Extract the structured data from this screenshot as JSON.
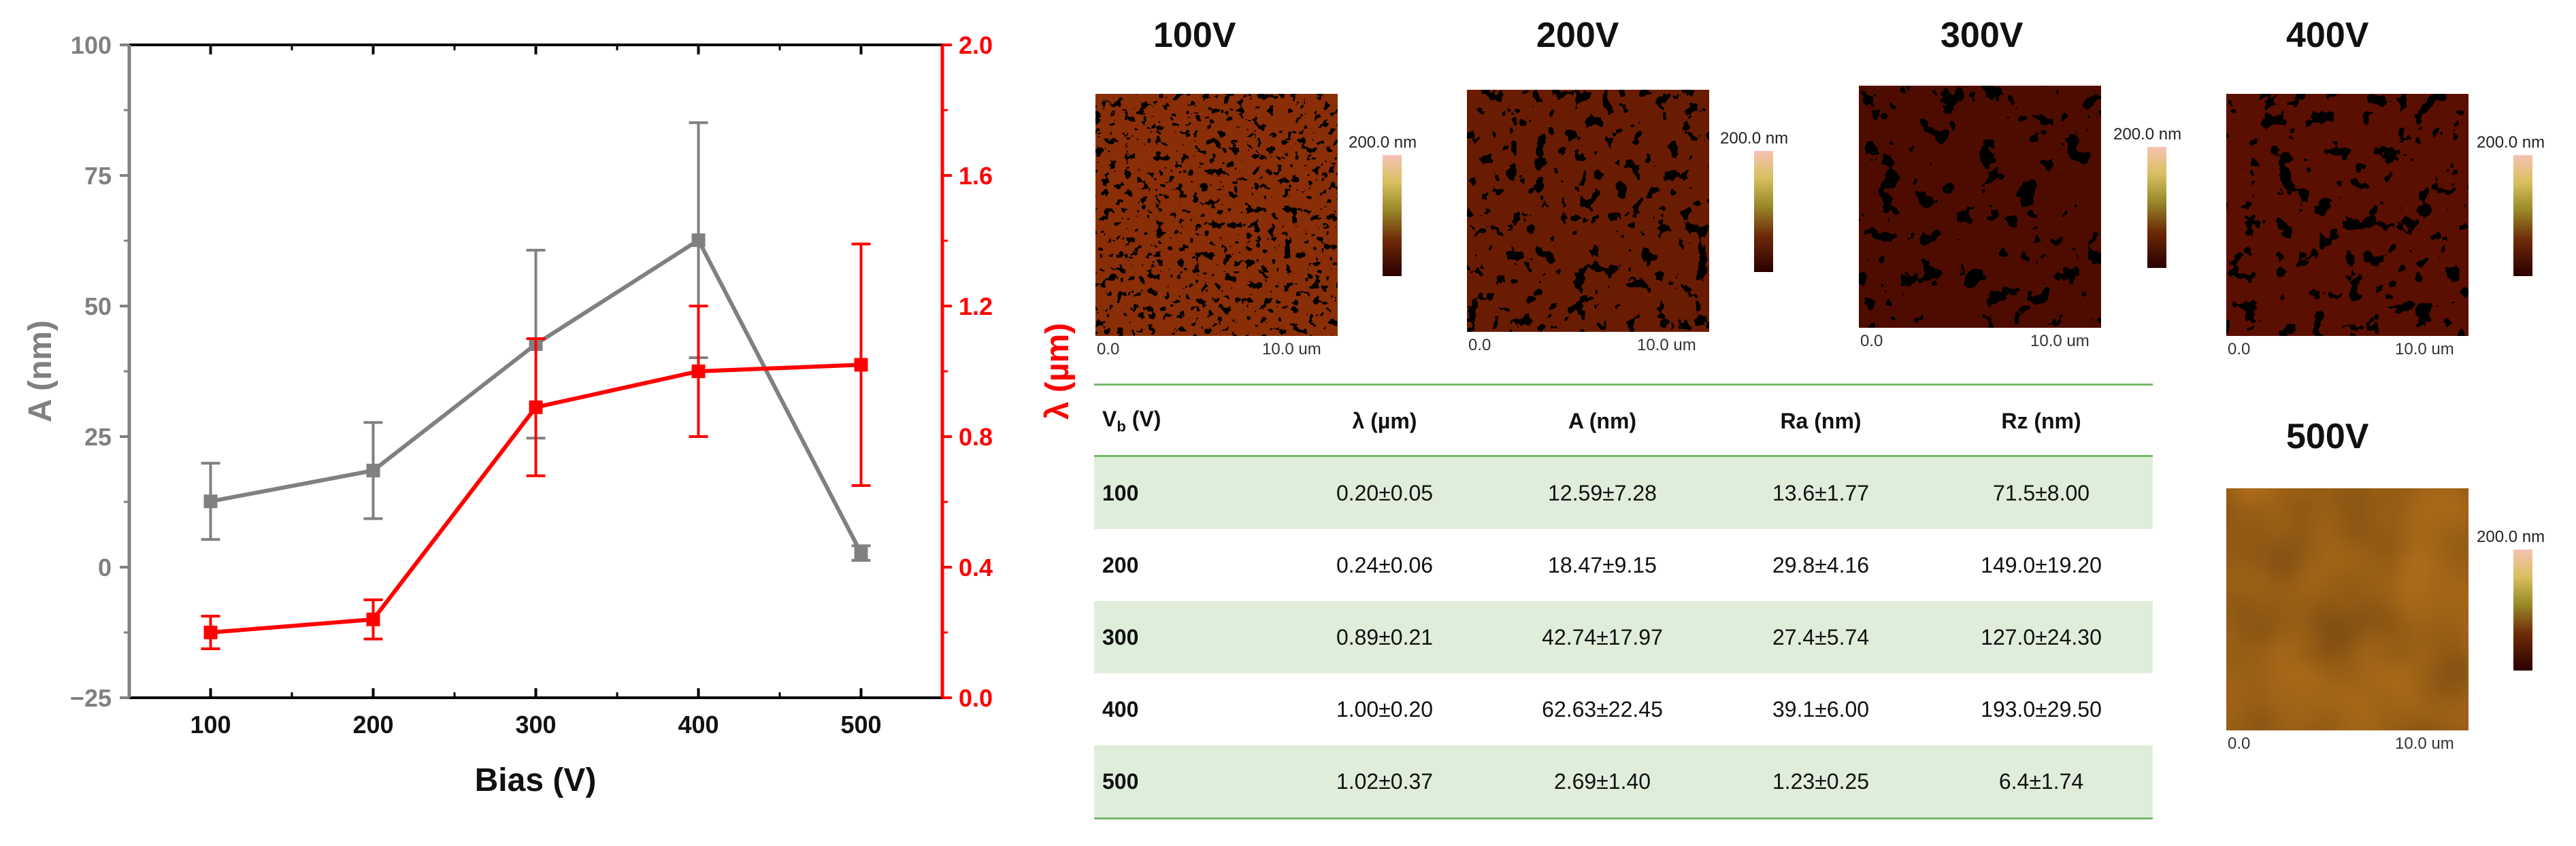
{
  "chart_data": {
    "type": "line",
    "xlabel": "Bias (V)",
    "ylabel_left": "A (nm)",
    "ylabel_right": "λ (µm)",
    "categories": [
      100,
      200,
      300,
      400,
      500
    ],
    "xlim": [
      50,
      550
    ],
    "ylim_left": [
      -25,
      100
    ],
    "ylim_right": [
      0.0,
      2.0
    ],
    "yticks_left": [
      "−25",
      "0",
      "25",
      "50",
      "75",
      "100"
    ],
    "yticks_right": [
      "0.0",
      "0.4",
      "0.8",
      "1.2",
      "1.6",
      "2.0"
    ],
    "xticks": [
      "100",
      "200",
      "300",
      "400",
      "500"
    ],
    "series": [
      {
        "name": "A (nm)",
        "axis": "left",
        "color": "#808080",
        "values": [
          12.6,
          18.5,
          42.7,
          62.6,
          2.7
        ],
        "errors": [
          7.3,
          9.2,
          18.0,
          22.5,
          1.4
        ]
      },
      {
        "name": "λ (µm)",
        "axis": "right",
        "color": "#ff0000",
        "values": [
          0.2,
          0.24,
          0.89,
          1.0,
          1.02
        ],
        "errors": [
          0.05,
          0.06,
          0.21,
          0.2,
          0.37
        ]
      }
    ]
  },
  "afm_images": [
    {
      "title": "100V",
      "scale_max": "200.0 nm",
      "x_min": "0.0",
      "x_max": "10.0 um"
    },
    {
      "title": "200V",
      "scale_max": "200.0 nm",
      "x_min": "0.0",
      "x_max": "10.0 um"
    },
    {
      "title": "300V",
      "scale_max": "200.0 nm",
      "x_min": "0.0",
      "x_max": "10.0 um"
    },
    {
      "title": "400V",
      "scale_max": "200.0 nm",
      "x_min": "0.0",
      "x_max": "10.0 um"
    },
    {
      "title": "500V",
      "scale_max": "200.0 nm",
      "x_min": "0.0",
      "x_max": "10.0 um"
    }
  ],
  "table": {
    "headers": {
      "vb_main": "V",
      "vb_sub": "b",
      "vb_unit": " (V)",
      "lambda": "λ (µm)",
      "a": "A (nm)",
      "ra": "Ra (nm)",
      "rz": "Rz (nm)"
    },
    "rows": [
      [
        "100",
        "0.20±0.05",
        "12.59±7.28",
        "13.6±1.77",
        "71.5±8.00"
      ],
      [
        "200",
        "0.24±0.06",
        "18.47±9.15",
        "29.8±4.16",
        "149.0±19.20"
      ],
      [
        "300",
        "0.89±0.21",
        "42.74±17.97",
        "27.4±5.74",
        "127.0±24.30"
      ],
      [
        "400",
        "1.00±0.20",
        "62.63±22.45",
        "39.1±6.00",
        "193.0±29.50"
      ],
      [
        "500",
        "1.02±0.37",
        "2.69±1.40",
        "1.23±0.25",
        "6.4±1.74"
      ]
    ]
  }
}
